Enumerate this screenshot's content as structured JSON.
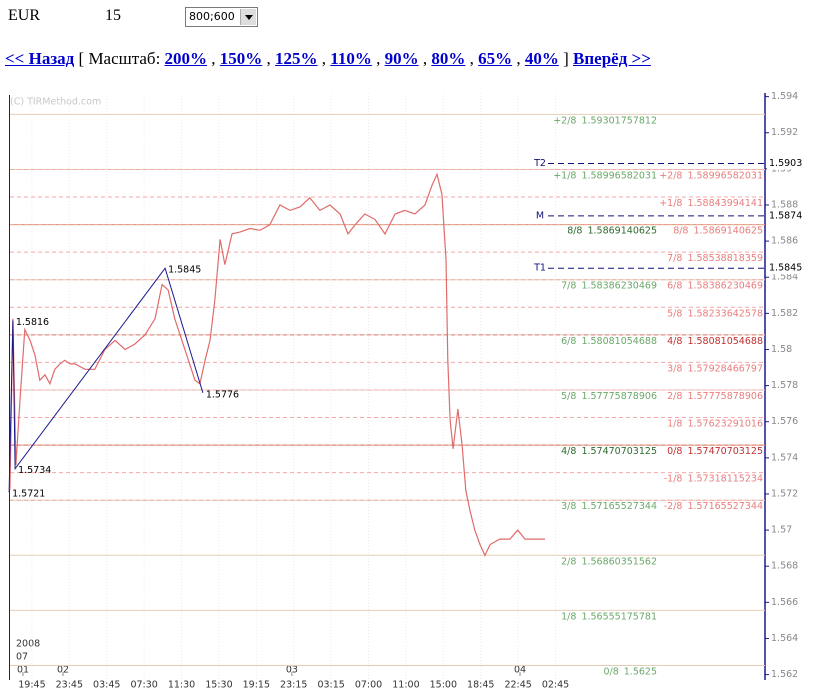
{
  "header": {
    "symbol": "EUR",
    "period": "15",
    "resolution": "800;600"
  },
  "nav": {
    "back": "<< Назад",
    "scale_label": "[ Масштаб:",
    "zooms": [
      "200%",
      "150%",
      "125%",
      "110%",
      "90%",
      "80%",
      "65%",
      "40%"
    ],
    "separator": ",",
    "close": "]",
    "forward": "Вперёд >>"
  },
  "chart_data": {
    "type": "line",
    "watermark": "(C) TIRMethod.com",
    "xlim": [
      -0.64,
      19.6
    ],
    "xticks": [
      {
        "value": 0,
        "label": "19:45"
      },
      {
        "value": 1,
        "label": "23:45"
      },
      {
        "value": 2,
        "label": "03:45"
      },
      {
        "value": 3,
        "label": "07:30"
      },
      {
        "value": 4,
        "label": "11:30"
      },
      {
        "value": 5,
        "label": "15:30"
      },
      {
        "value": 6,
        "label": "19:15"
      },
      {
        "value": 7,
        "label": "23:15"
      },
      {
        "value": 8,
        "label": "03:15"
      },
      {
        "value": 9,
        "label": "07:00"
      },
      {
        "value": 10,
        "label": "11:00"
      },
      {
        "value": 11,
        "label": "15:00"
      },
      {
        "value": 12,
        "label": "18:45"
      },
      {
        "value": 13,
        "label": "22:45"
      },
      {
        "value": 14,
        "label": "02:45"
      }
    ],
    "year": "2008",
    "month": "07",
    "date_ticks": [
      {
        "value": -0.24,
        "label": "01"
      },
      {
        "value": 0.83,
        "label": "02"
      },
      {
        "value": 6.95,
        "label": "03"
      },
      {
        "value": 13.05,
        "label": "04"
      }
    ],
    "ylim": [
      1.5617,
      1.5942
    ],
    "yticks": [
      1.594,
      1.592,
      1.59,
      1.588,
      1.586,
      1.584,
      1.582,
      1.58,
      1.578,
      1.576,
      1.574,
      1.572,
      1.57,
      1.568,
      1.566,
      1.564,
      1.562
    ],
    "series": [
      {
        "color": "#e06b6b",
        "x": [
          -0.59,
          -0.51,
          -0.43,
          -0.32,
          -0.19,
          -0.05,
          0.08,
          0.21,
          0.35,
          0.48,
          0.61,
          0.75,
          0.88,
          1.02,
          1.15,
          1.42,
          1.68,
          1.95,
          2.22,
          2.49,
          2.75,
          3.02,
          3.29,
          3.48,
          3.64,
          3.82,
          4.09,
          4.36,
          4.49,
          4.63,
          4.76,
          4.89,
          5.03,
          5.16,
          5.35,
          5.56,
          5.83,
          6.1,
          6.36,
          6.63,
          6.9,
          7.17,
          7.43,
          7.7,
          7.97,
          8.24,
          8.45,
          8.64,
          8.9,
          9.17,
          9.44,
          9.71,
          9.97,
          10.24,
          10.51,
          10.7,
          10.83,
          10.96,
          11.07,
          11.12,
          11.18,
          11.26,
          11.39,
          11.5,
          11.6,
          11.71,
          11.84,
          11.98,
          12.11,
          12.25,
          12.51,
          12.78,
          12.99,
          13.18,
          13.45,
          13.72
        ],
        "values": [
          1.5722,
          1.5817,
          1.5736,
          1.5772,
          1.5811,
          1.5805,
          1.5797,
          1.5783,
          1.5786,
          1.5781,
          1.5789,
          1.5792,
          1.5794,
          1.5792,
          1.5792,
          1.5789,
          1.5789,
          1.58,
          1.5805,
          1.58,
          1.5803,
          1.5808,
          1.5817,
          1.5836,
          1.5833,
          1.5817,
          1.58,
          1.5783,
          1.5781,
          1.5794,
          1.5805,
          1.5827,
          1.5861,
          1.5847,
          1.5864,
          1.5865,
          1.5867,
          1.5866,
          1.5869,
          1.588,
          1.5877,
          1.5879,
          1.5884,
          1.5877,
          1.588,
          1.5875,
          1.5864,
          1.5869,
          1.5875,
          1.5872,
          1.5864,
          1.5875,
          1.5877,
          1.5875,
          1.588,
          1.5891,
          1.5897,
          1.5886,
          1.585,
          1.5794,
          1.5761,
          1.5745,
          1.5767,
          1.5747,
          1.5722,
          1.5711,
          1.57,
          1.5692,
          1.5686,
          1.5692,
          1.5695,
          1.5695,
          1.57,
          1.5695,
          1.5695,
          1.5695
        ]
      }
    ],
    "zigzag": {
      "color": "#1a1a8c",
      "x": [
        -0.61,
        -0.51,
        -0.45,
        3.56,
        4.57
      ],
      "values": [
        1.5721,
        1.5816,
        1.5734,
        1.5845,
        1.5776
      ]
    },
    "levels": [
      {
        "color": "#6aa86a",
        "major_color": "#2d6a2d",
        "line_color": "#e6cdb8",
        "major_line_color": "#d6956a",
        "dashed": false,
        "items": [
          {
            "name": "+2/8",
            "value": 1.59301757812
          },
          {
            "name": "+1/8",
            "value": 1.58996582031
          },
          {
            "name": "8/8",
            "value": 1.5869140625,
            "major": true
          },
          {
            "name": "7/8",
            "value": 1.58386230469
          },
          {
            "name": "6/8",
            "value": 1.58081054688
          },
          {
            "name": "5/8",
            "value": 1.57775878906
          },
          {
            "name": "4/8",
            "value": 1.57470703125,
            "major": true
          },
          {
            "name": "3/8",
            "value": 1.57165527344
          },
          {
            "name": "2/8",
            "value": 1.56860351562
          },
          {
            "name": "1/8",
            "value": 1.56555175781
          },
          {
            "name": "0/8",
            "value": 1.5625
          }
        ]
      },
      {
        "color": "#e87d7d",
        "major_color": "#c03030",
        "line_color": "#f2a9a9",
        "major_line_color": "#e07a7a",
        "dashed": true,
        "items": [
          {
            "name": "+2/8",
            "value": 1.58996582031
          },
          {
            "name": "+1/8",
            "value": 1.58843994141
          },
          {
            "name": "8/8",
            "value": 1.5869140625
          },
          {
            "name": "7/8",
            "value": 1.58538818359
          },
          {
            "name": "6/8",
            "value": 1.58386230469
          },
          {
            "name": "5/8",
            "value": 1.58233642578
          },
          {
            "name": "4/8",
            "value": 1.58081054688,
            "major": true
          },
          {
            "name": "3/8",
            "value": 1.57928466797
          },
          {
            "name": "2/8",
            "value": 1.57775878906
          },
          {
            "name": "1/8",
            "value": 1.57623291016
          },
          {
            "name": "0/8",
            "value": 1.57470703125,
            "major": true
          },
          {
            "name": "-1/8",
            "value": 1.57318115234
          },
          {
            "name": "-2/8",
            "value": 1.57165527344
          }
        ]
      }
    ],
    "targets": [
      {
        "name": "T2",
        "value": 1.5903
      },
      {
        "name": "M",
        "value": 1.5874
      },
      {
        "name": "T1",
        "value": 1.5845
      }
    ],
    "target_color": "#10107a"
  }
}
